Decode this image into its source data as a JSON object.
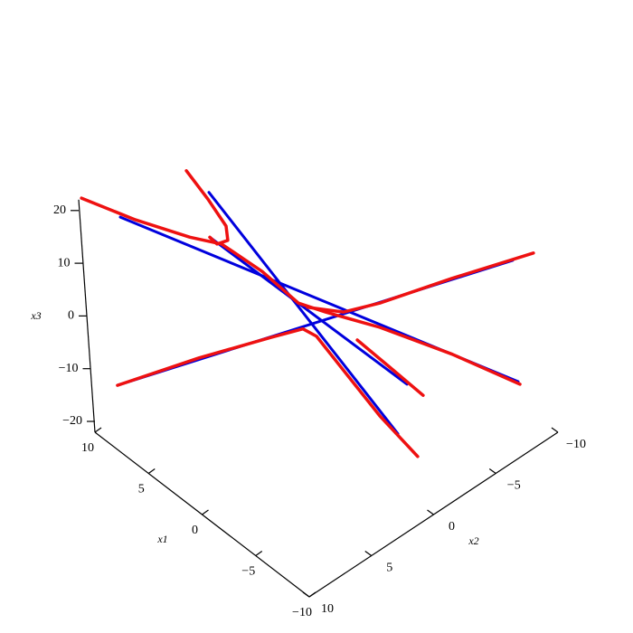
{
  "chart_data": {
    "type": "line3d",
    "xlabel": "x1",
    "ylabel": "x2",
    "zlabel": "x3",
    "x1lim": [
      10,
      -10
    ],
    "x2lim": [
      10,
      -10
    ],
    "x3lim": [
      -20,
      20
    ],
    "x1ticks": [
      10,
      5,
      0,
      {
        "value": -5,
        "label": "−5"
      },
      {
        "value": -10,
        "label": "−10"
      }
    ],
    "x2ticks": [
      {
        "value": -10,
        "label": "−10"
      },
      {
        "value": -5,
        "label": "−5"
      },
      0,
      5,
      10
    ],
    "x3ticks": [
      20,
      10,
      0,
      {
        "value": -10,
        "label": "−10"
      },
      {
        "value": -20,
        "label": "−20"
      }
    ],
    "series": [
      {
        "color": "#0000dd",
        "width": 3,
        "x1": [
          8.19,
          -8.45
        ],
        "x2": [
          8.19,
          -8.45
        ],
        "x3": [
          20.8,
          -10.4
        ]
      },
      {
        "color": "#0000dd",
        "width": 3,
        "x1": [
          8.87,
          -8.62
        ],
        "x2": [
          8.87,
          -8.62
        ],
        "x3": [
          -11.1,
          12.6
        ]
      },
      {
        "color": "#0000dd",
        "width": 3,
        "x1": [
          4.28,
          -3.08
        ],
        "x2": [
          4.28,
          -3.08
        ],
        "x3": [
          25.5,
          -20.3
        ]
      },
      {
        "color": "#0000dd",
        "width": 3,
        "x1": [
          4.39,
          -3.64
        ],
        "x2": [
          4.39,
          -3.64
        ],
        "x3": [
          17.0,
          -10.9
        ]
      },
      {
        "color": "#ee1111",
        "width": 3.5,
        "x1": [
          9.8,
          7.54,
          5.25,
          3.9,
          2.24,
          0.78,
          -0.36,
          -2.66,
          -5.69,
          -8.52
        ],
        "x2": [
          9.8,
          7.54,
          5.25,
          3.9,
          2.24,
          0.78,
          -0.36,
          -2.66,
          -5.69,
          -8.52
        ],
        "x3": [
          24.4,
          20.3,
          17.0,
          15.7,
          10.5,
          4.5,
          2.8,
          -0.1,
          -5.2,
          -10.9
        ]
      },
      {
        "color": "#ee1111",
        "width": 3.5,
        "x1": [
          5.18,
          4.34,
          3.65,
          3.62,
          4.1,
          4.39
        ],
        "x2": [
          5.18,
          4.34,
          3.65,
          3.62,
          4.1,
          4.39
        ],
        "x3": [
          29.6,
          24.2,
          19.1,
          16.4,
          15.7,
          17.0
        ]
      },
      {
        "color": "#ee1111",
        "width": 3.5,
        "x1": [
          8.87,
          5.26,
          2.07,
          0.67,
          0.11,
          -0.95,
          -2.36,
          -3.86
        ],
        "x2": [
          8.87,
          5.26,
          2.07,
          0.67,
          0.11,
          -0.95,
          -2.36,
          -3.86
        ],
        "x3": [
          -11.1,
          -5.9,
          -2.0,
          -0.4,
          -1.8,
          -8.3,
          -16.9,
          -24.6
        ]
      },
      {
        "color": "#ee1111",
        "width": 3.5,
        "x1": [
          -9.54,
          -5.94,
          -2.73,
          -1.14,
          0.4
        ],
        "x2": [
          -9.54,
          -5.94,
          -2.73,
          -1.14,
          0.4
        ],
        "x3": [
          14.0,
          9.2,
          4.5,
          2.8,
          3.7
        ]
      },
      {
        "color": "#ee1111",
        "width": 3.5,
        "x1": [
          -1.64,
          -2.91,
          -4.3
        ],
        "x2": [
          -1.64,
          -2.91,
          -4.3
        ],
        "x3": [
          -2.5,
          -7.5,
          -13.0
        ]
      }
    ]
  }
}
